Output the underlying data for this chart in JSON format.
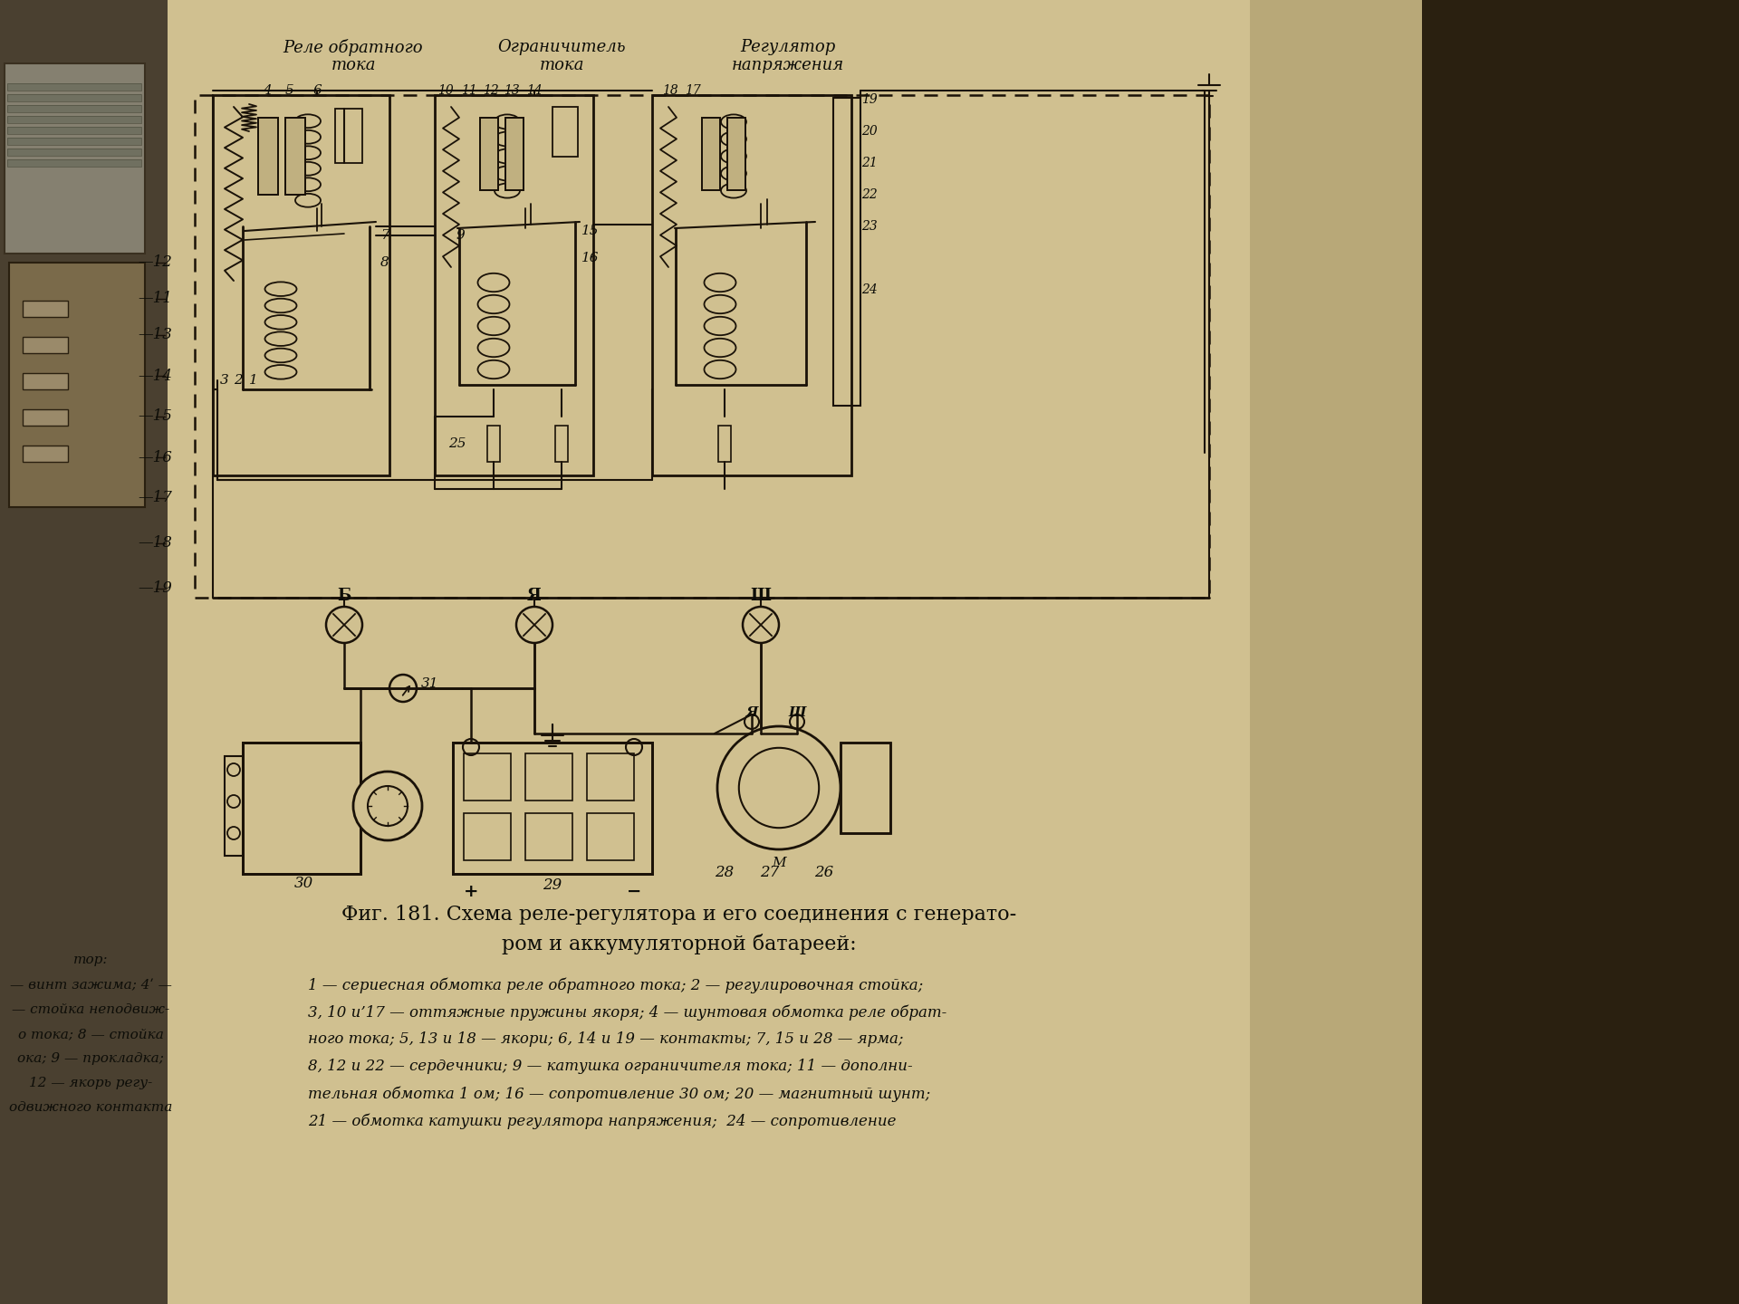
{
  "bg_left_dark": "#2a2418",
  "bg_right_dark": "#1a1510",
  "bg_paper": "#c8b98a",
  "bg_paper_light": "#d4c89e",
  "line_color": "#1a1208",
  "line_color_mid": "#2a2010",
  "text_color": "#0d0d08",
  "title_line1": "Фиг. 181. Схема реле-регулятора и его соединения с генерато-",
  "title_line2": "ром и аккумуляторной батареей:",
  "lbl_relay1": "Реле обратного",
  "lbl_relay1b": "тока",
  "lbl_limiter": "Ограничитель",
  "lbl_limiterb": "тока",
  "lbl_regulator": "Регулятор",
  "lbl_regulatorb": "напряжения",
  "desc1": "1 — сериесная обмотка реле обратного тока; 2 — регулировочная стойка;",
  "desc2": "3, 10 и’17 — оттяжные пружины якоря; 4 — шунтовая обмотка реле обрат-",
  "desc3": "ного тока; 5, 13 и 18 — якори; 6, 14 и 19 — контакты; 7, 15 и 28 — ярма;",
  "desc4": "8, 12 и 22 — сердечники; 9 — катушка ограничителя тока; 11 — дополни-",
  "desc5": "тельная обмотка 1 ом; 16 — сопротивление 30 ом; 20 — магнитный шунт;",
  "desc6": "21 — обмотка катушки регулятора напряжения;  24 — сопротивление",
  "left_desc_tor": "тор:",
  "left_desc1": "— винт зажима; 4ʹ —",
  "left_desc2": "— стойка неподвиж-",
  "left_desc3": "о тока; 8 — стойка",
  "left_desc4": "ока; 9 — прокладка;",
  "left_desc5": "12 — якорь регу-",
  "left_desc6": "одвижного контакта",
  "figsize": [
    19.2,
    14.4
  ],
  "dpi": 100
}
